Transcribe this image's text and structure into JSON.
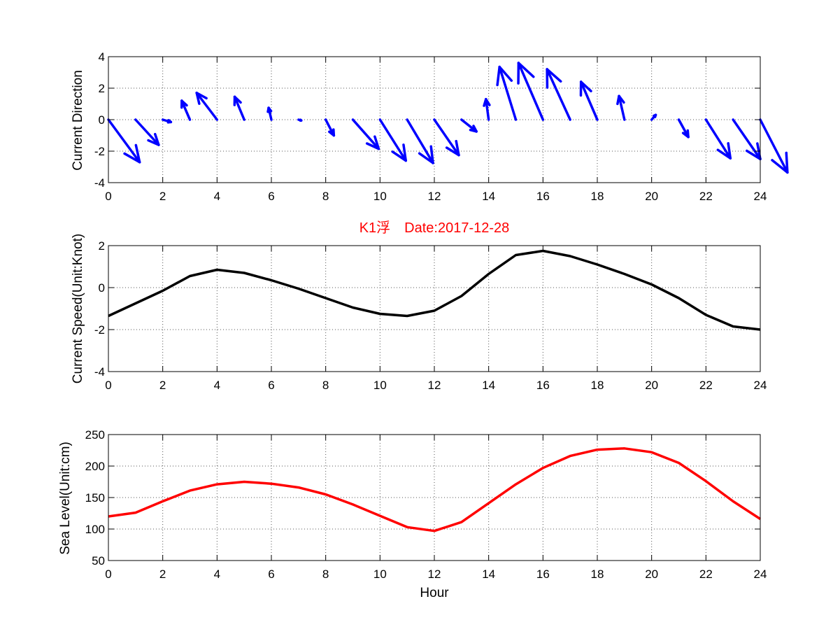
{
  "chart_data": [
    {
      "type": "quiver",
      "ylabel": "Current Direction",
      "xlim": [
        0,
        24
      ],
      "ylim": [
        -4,
        4
      ],
      "xticks": [
        0,
        2,
        4,
        6,
        8,
        10,
        12,
        14,
        16,
        18,
        20,
        22,
        24
      ],
      "yticks": [
        -4,
        -2,
        0,
        2,
        4
      ],
      "grid": true,
      "color": "#0000ff",
      "x": [
        0,
        1,
        2,
        3,
        4,
        5,
        6,
        7,
        8,
        9,
        10,
        11,
        12,
        13,
        14,
        15,
        16,
        17,
        18,
        19,
        20,
        21,
        22,
        23,
        24
      ],
      "u": [
        1.15,
        0.85,
        0.3,
        -0.3,
        -0.75,
        -0.35,
        -0.1,
        0.1,
        0.3,
        0.95,
        0.95,
        0.95,
        0.9,
        0.55,
        -0.1,
        -0.6,
        -0.9,
        -0.85,
        -0.6,
        -0.2,
        0.15,
        0.35,
        0.9,
        1.0,
        1.0
      ],
      "v": [
        -2.7,
        -1.6,
        -0.15,
        1.2,
        1.7,
        1.45,
        0.75,
        -0.05,
        -1.0,
        -1.85,
        -2.6,
        -2.75,
        -2.25,
        -0.75,
        1.3,
        3.35,
        3.6,
        3.2,
        2.4,
        1.5,
        0.3,
        -1.1,
        -2.45,
        -2.5,
        -3.35
      ]
    },
    {
      "type": "line",
      "title": "K1浮　Date:2017-12-28",
      "ylabel": "Current Speed(Unit:Knot)",
      "xlim": [
        0,
        24
      ],
      "ylim": [
        -4,
        2
      ],
      "xticks": [
        0,
        2,
        4,
        6,
        8,
        10,
        12,
        14,
        16,
        18,
        20,
        22,
        24
      ],
      "yticks": [
        -4,
        -2,
        0,
        2
      ],
      "grid": true,
      "color": "#000000",
      "x": [
        0,
        1,
        2,
        3,
        4,
        5,
        6,
        7,
        8,
        9,
        10,
        11,
        12,
        13,
        14,
        15,
        16,
        17,
        18,
        19,
        20,
        21,
        22,
        23,
        24
      ],
      "y": [
        -1.35,
        -0.75,
        -0.15,
        0.55,
        0.85,
        0.7,
        0.35,
        -0.05,
        -0.5,
        -0.95,
        -1.25,
        -1.35,
        -1.1,
        -0.4,
        0.65,
        1.55,
        1.75,
        1.5,
        1.1,
        0.65,
        0.15,
        -0.5,
        -1.3,
        -1.85,
        -2.0
      ]
    },
    {
      "type": "line",
      "xlabel": "Hour",
      "ylabel": "Sea Level(Unit:cm)",
      "xlim": [
        0,
        24
      ],
      "ylim": [
        50,
        250
      ],
      "xticks": [
        0,
        2,
        4,
        6,
        8,
        10,
        12,
        14,
        16,
        18,
        20,
        22,
        24
      ],
      "yticks": [
        50,
        100,
        150,
        200,
        250
      ],
      "grid": true,
      "color": "#ff0000",
      "x": [
        0,
        1,
        2,
        3,
        4,
        5,
        6,
        7,
        8,
        9,
        10,
        11,
        12,
        13,
        14,
        15,
        16,
        17,
        18,
        19,
        20,
        21,
        22,
        23,
        24
      ],
      "y": [
        120,
        126,
        144,
        161,
        171,
        175,
        172,
        166,
        155,
        139,
        121,
        103,
        97,
        111,
        141,
        171,
        197,
        216,
        226,
        228,
        222,
        205,
        176,
        144,
        116
      ]
    }
  ]
}
